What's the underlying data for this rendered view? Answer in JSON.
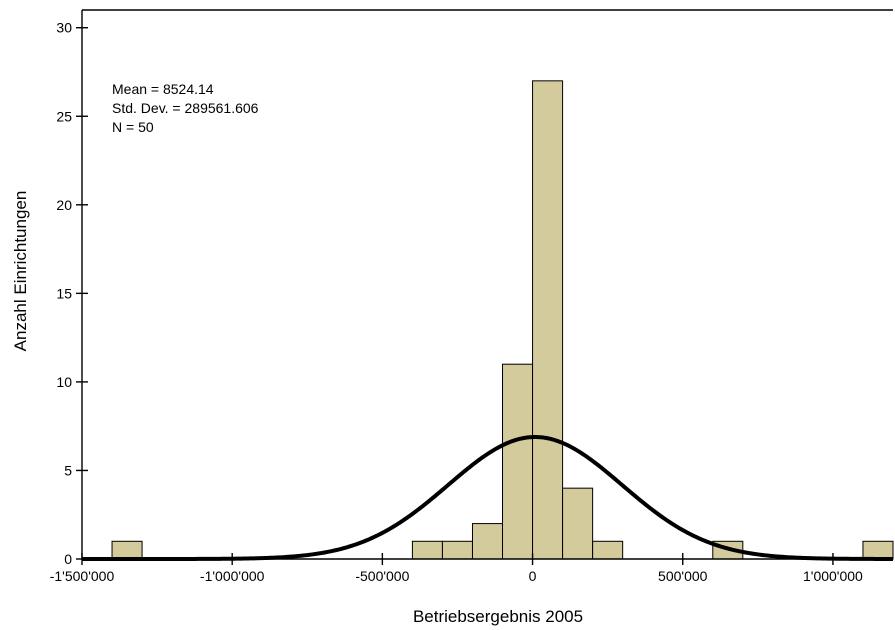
{
  "chart_data": {
    "type": "bar",
    "subtype": "histogram",
    "xlabel": "Betriebsergebnis 2005",
    "ylabel": "Anzahl Einrichtungen",
    "xlim": [
      -1500000,
      1200000
    ],
    "ylim": [
      0,
      31
    ],
    "x_ticks": [
      {
        "value": -1500000,
        "label": "-1'500'000"
      },
      {
        "value": -1000000,
        "label": "-1'000'000"
      },
      {
        "value": -500000,
        "label": "-500'000"
      },
      {
        "value": 0,
        "label": "0"
      },
      {
        "value": 500000,
        "label": "500'000"
      },
      {
        "value": 1000000,
        "label": "1'000'000"
      }
    ],
    "y_ticks": [
      {
        "value": 0,
        "label": "0"
      },
      {
        "value": 5,
        "label": "5"
      },
      {
        "value": 10,
        "label": "10"
      },
      {
        "value": 15,
        "label": "15"
      },
      {
        "value": 20,
        "label": "20"
      },
      {
        "value": 25,
        "label": "25"
      },
      {
        "value": 30,
        "label": "30"
      }
    ],
    "bin_width": 100000,
    "bins": [
      {
        "start": -1400000,
        "end": -1300000,
        "count": 1
      },
      {
        "start": -400000,
        "end": -300000,
        "count": 1
      },
      {
        "start": -300000,
        "end": -200000,
        "count": 1
      },
      {
        "start": -200000,
        "end": -100000,
        "count": 2
      },
      {
        "start": -100000,
        "end": 0,
        "count": 11
      },
      {
        "start": 0,
        "end": 100000,
        "count": 27
      },
      {
        "start": 100000,
        "end": 200000,
        "count": 4
      },
      {
        "start": 200000,
        "end": 300000,
        "count": 1
      },
      {
        "start": 600000,
        "end": 700000,
        "count": 1
      },
      {
        "start": 1100000,
        "end": 1200000,
        "count": 1
      }
    ],
    "normal_curve": {
      "mean": 8524.14,
      "std_dev": 289561.606,
      "n": 50
    },
    "stats_lines": [
      "Mean = 8524.14",
      "Std. Dev. = 289561.606",
      "N = 50"
    ],
    "colors": {
      "bar": "#d3cb9b",
      "stroke": "#000000"
    },
    "grid": false,
    "legend": "none"
  }
}
